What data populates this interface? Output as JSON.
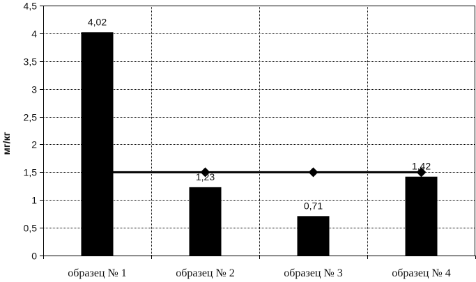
{
  "chart_data": {
    "type": "bar",
    "categories": [
      "образец № 1",
      "образец № 2",
      "образец № 3",
      "образец № 4"
    ],
    "values": [
      4.02,
      1.23,
      0.71,
      1.42
    ],
    "value_labels": [
      "4,02",
      "1,23",
      "0,71",
      "1,42"
    ],
    "reference_line": {
      "value": 1.5,
      "marker_categories": [
        "образец № 2",
        "образец № 3",
        "образец № 4"
      ]
    },
    "title": "",
    "xlabel": "",
    "ylabel": "мг/кг",
    "ylim": [
      0,
      4.5
    ],
    "yticks": [
      0,
      0.5,
      1,
      1.5,
      2,
      2.5,
      3,
      3.5,
      4,
      4.5
    ],
    "ytick_labels": [
      "0",
      "0,5",
      "1",
      "1,5",
      "2",
      "2,5",
      "3",
      "3,5",
      "4",
      "4,5"
    ],
    "grid": true,
    "legend": "none",
    "colors": {
      "bar": "#000000",
      "line": "#000000",
      "grid": "#000000"
    }
  }
}
